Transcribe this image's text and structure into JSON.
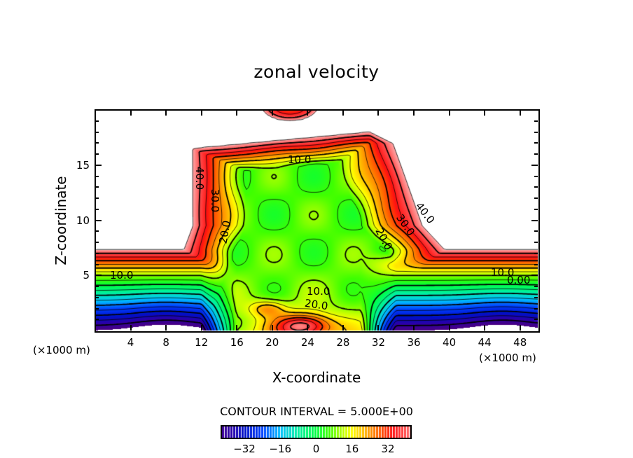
{
  "chart_data": {
    "type": "heatmap",
    "subtype": "filled-contour",
    "title": "zonal velocity",
    "xlabel": "X-coordinate",
    "ylabel": "Z-coordinate",
    "x_unit": "(×1000 m)",
    "z_unit": "(×1000 m)",
    "xlim": [
      0,
      50
    ],
    "ylim": [
      0,
      20
    ],
    "x_ticks": [
      4,
      8,
      12,
      16,
      20,
      24,
      28,
      32,
      36,
      40,
      44,
      48
    ],
    "y_ticks": [
      5,
      10,
      15
    ],
    "contour_interval_text": "CONTOUR INTERVAL = 5.000E+00",
    "contour_interval": 5,
    "contour_levels": [
      -40,
      -35,
      -30,
      -25,
      -20,
      -15,
      -10,
      -5,
      0,
      5,
      10,
      15,
      20,
      25,
      30,
      35,
      40,
      45
    ],
    "contour_labels": [
      "40.0",
      "30.0",
      "20.0",
      "10.0",
      "10.0",
      "10.0",
      "20.0",
      "40.0",
      "30.0",
      "20.0",
      "10.0",
      "0.00"
    ],
    "colorbar": {
      "range": [
        -42,
        42
      ],
      "tick_labels": [
        "−32",
        "−16",
        "0",
        "16",
        "32"
      ],
      "tick_values": [
        -32,
        -16,
        0,
        16,
        32
      ]
    },
    "colors": {
      "-45": "#4b0082",
      "-38": "#2a00a8",
      "-32": "#0010c8",
      "-24": "#0040ff",
      "-16": "#00c0ff",
      "-8": "#00f0a0",
      "0": "#00ff40",
      "6": "#40ff00",
      "12": "#c0ff00",
      "16": "#ffff00",
      "22": "#ffb000",
      "28": "#ff6000",
      "34": "#ff1010",
      "40": "#ff5050",
      "45": "#ffa8a8"
    }
  }
}
